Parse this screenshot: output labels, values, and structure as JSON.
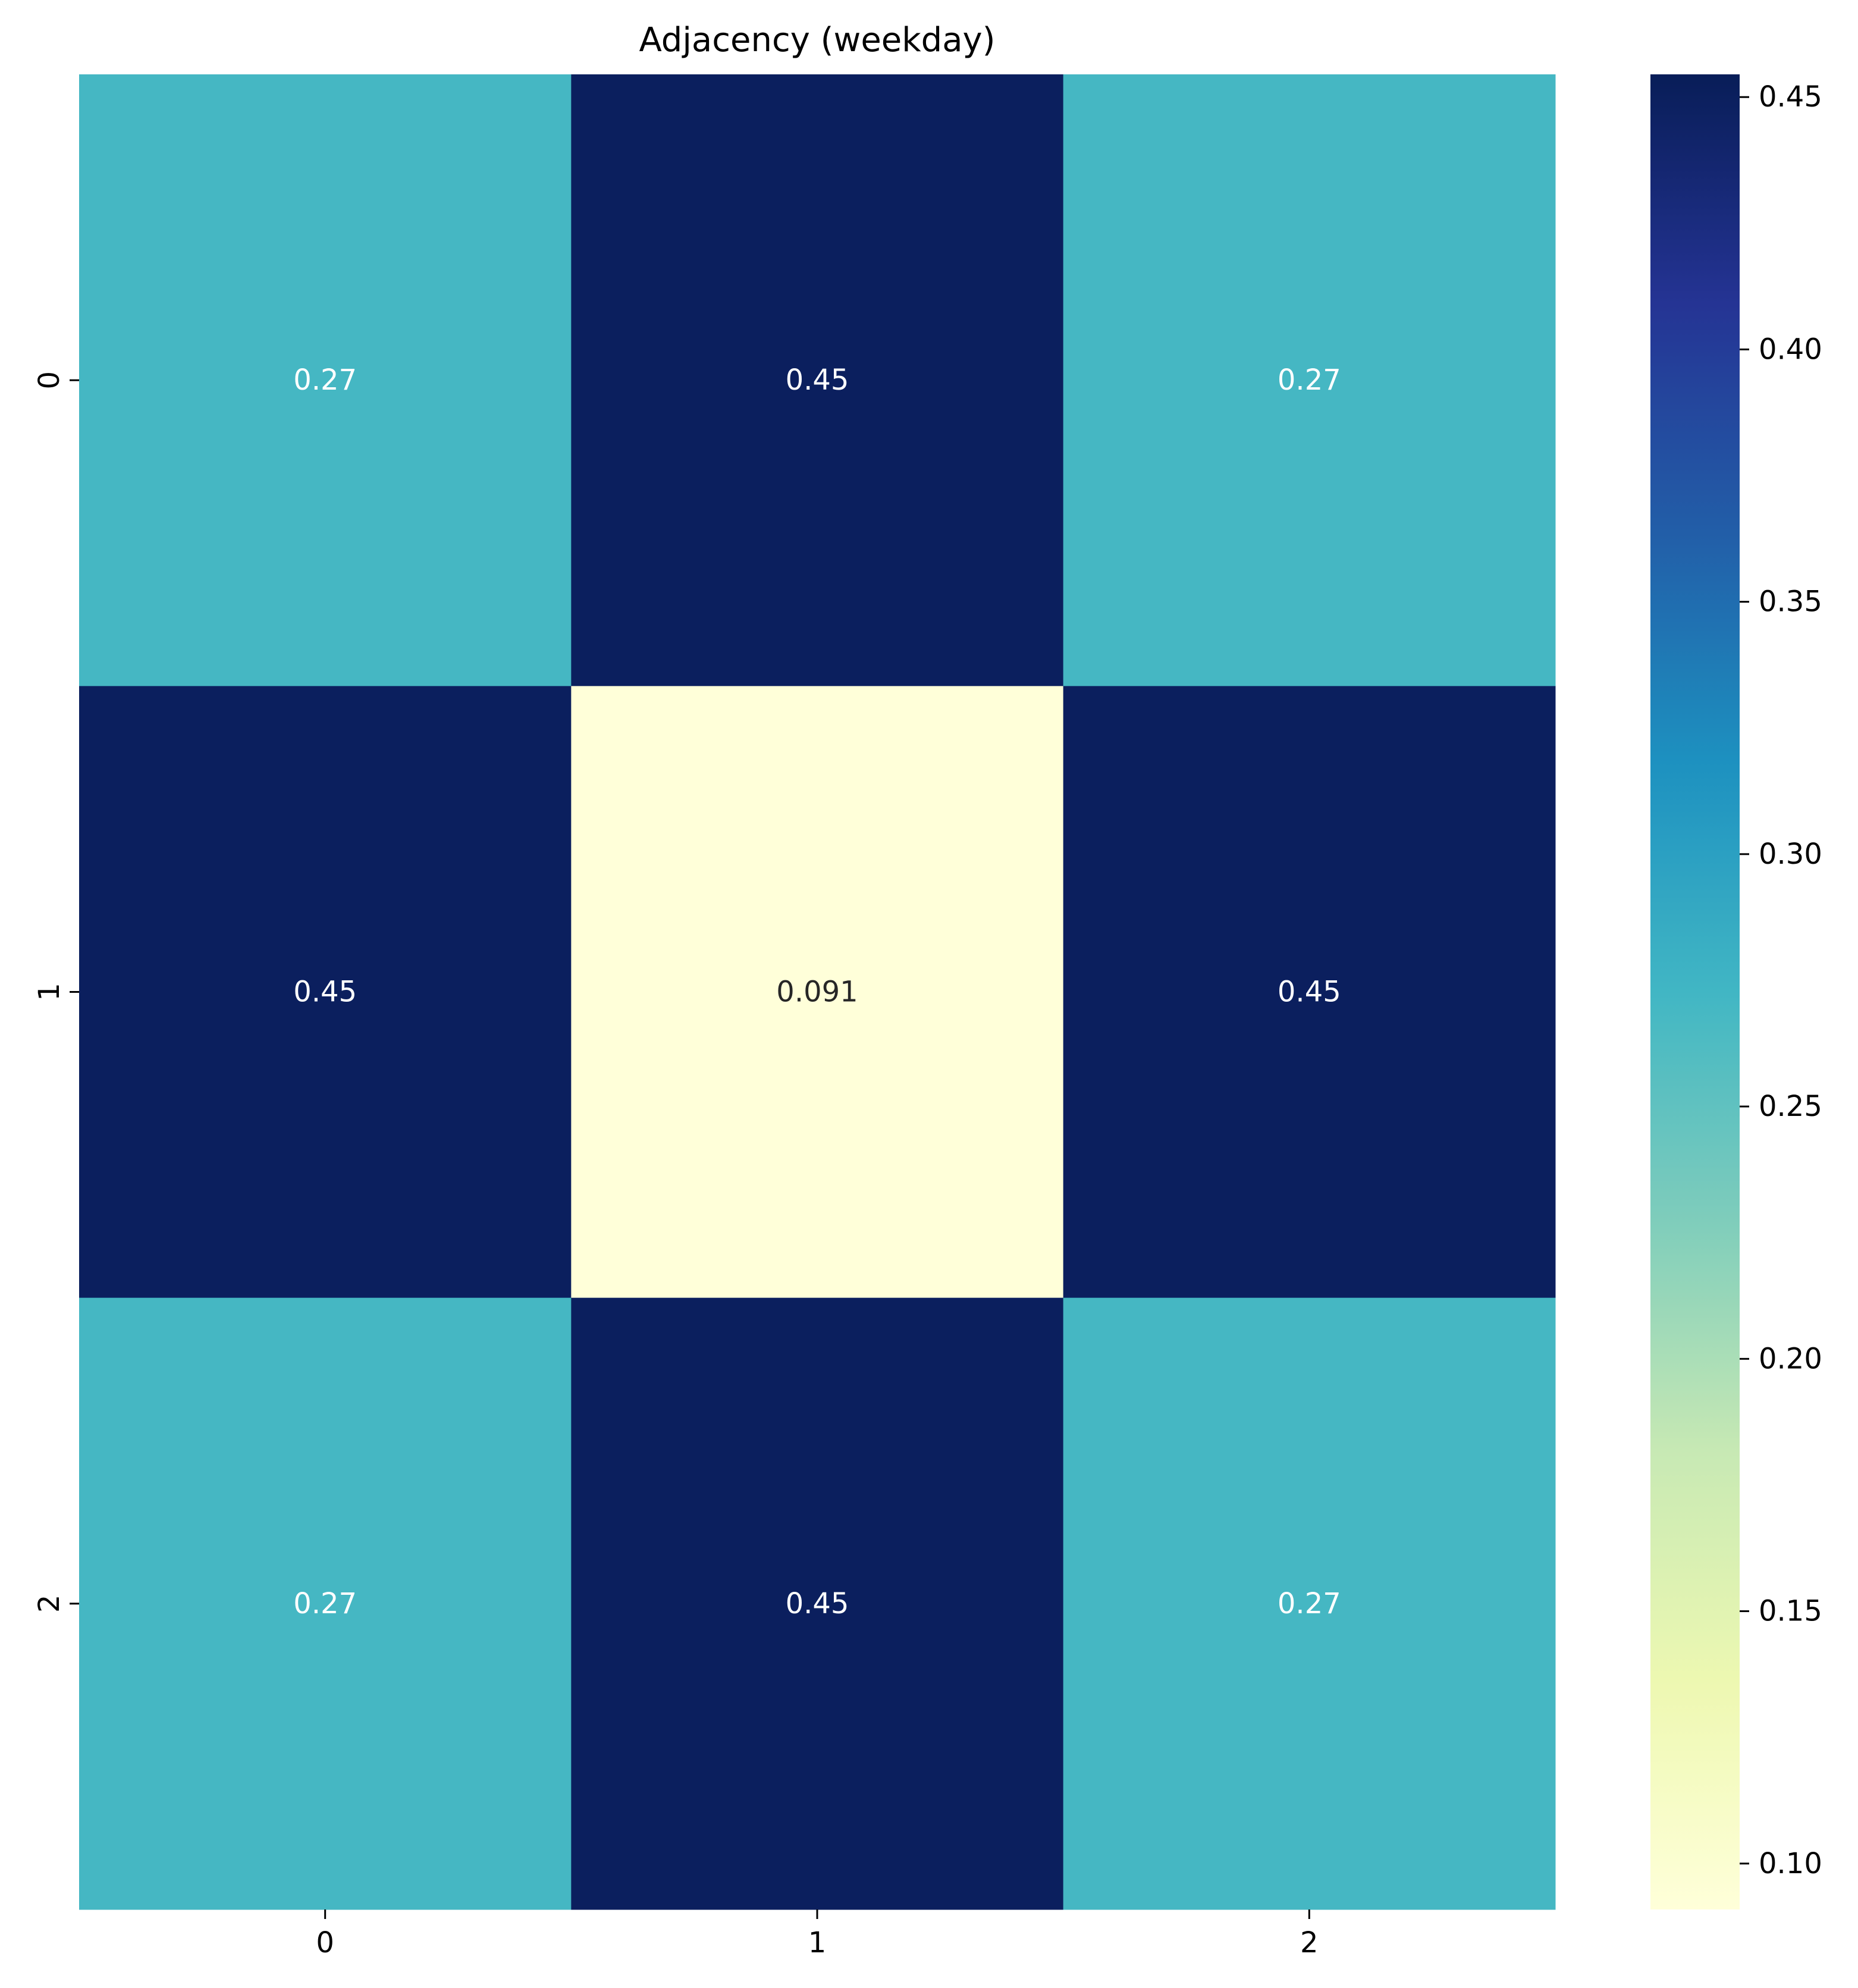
{
  "chart_data": {
    "type": "heatmap",
    "title": "Adjacency (weekday)",
    "xlabel": "",
    "ylabel": "",
    "x_categories": [
      "0",
      "1",
      "2"
    ],
    "y_categories": [
      "0",
      "1",
      "2"
    ],
    "values": [
      [
        0.27,
        0.45,
        0.27
      ],
      [
        0.45,
        0.091,
        0.45
      ],
      [
        0.27,
        0.45,
        0.27
      ]
    ],
    "annotations": [
      [
        "0.27",
        "0.45",
        "0.27"
      ],
      [
        "0.45",
        "0.091",
        "0.45"
      ],
      [
        "0.27",
        "0.45",
        "0.27"
      ]
    ],
    "colormap": "YlGnBu",
    "colormap_stops": [
      "#ffffd9",
      "#edf8b1",
      "#c7e9b4",
      "#7fcdbb",
      "#41b6c4",
      "#1d91c0",
      "#225ea8",
      "#253494",
      "#081d58"
    ],
    "vmin": 0.0909,
    "vmax": 0.4545,
    "colorbar_ticks": [
      0.1,
      0.15,
      0.2,
      0.25,
      0.3,
      0.35,
      0.4,
      0.45
    ],
    "colorbar_tick_labels": [
      "0.10",
      "0.15",
      "0.20",
      "0.25",
      "0.30",
      "0.35",
      "0.40",
      "0.45"
    ],
    "grid": false,
    "colorbar_position": "right"
  }
}
